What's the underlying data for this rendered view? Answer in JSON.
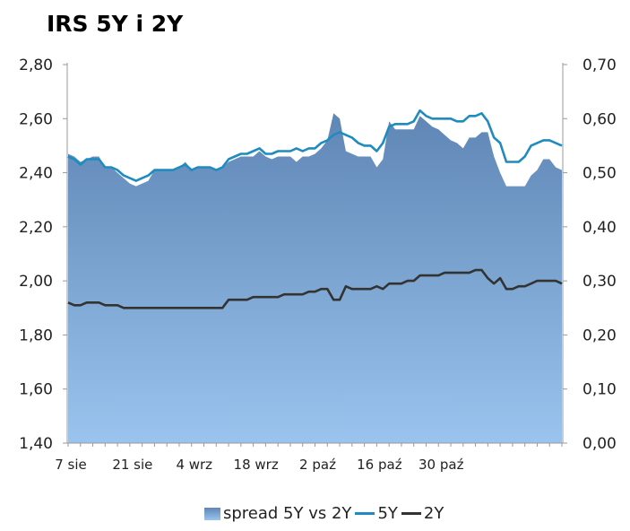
{
  "chart_data": {
    "type": "line",
    "title": "IRS 5Y i 2Y",
    "x_tick_labels": [
      "7 sie",
      "21 sie",
      "4 wrz",
      "18 wrz",
      "2 paź",
      "16 paź",
      "30 paź"
    ],
    "left_axis": {
      "min": 1.4,
      "max": 2.8,
      "step": 0.2,
      "tick_labels": [
        "1,40",
        "1,60",
        "1,80",
        "2,00",
        "2,20",
        "2,40",
        "2,60",
        "2,80"
      ]
    },
    "right_axis": {
      "min": 0.0,
      "max": 0.7,
      "step": 0.1,
      "tick_labels": [
        "0,00",
        "0,10",
        "0,20",
        "0,30",
        "0,40",
        "0,50",
        "0,60",
        "0,70"
      ]
    },
    "grid": false,
    "legend_position": "bottom",
    "colors": {
      "spread_top": "#5f86b5",
      "spread_bottom": "#9ac4ee",
      "five_y": "#1f8bbf",
      "two_y": "#333333"
    },
    "series": [
      {
        "name": "5Y",
        "axis": "left",
        "values": [
          2.46,
          2.45,
          2.43,
          2.45,
          2.45,
          2.45,
          2.42,
          2.42,
          2.41,
          2.39,
          2.38,
          2.37,
          2.38,
          2.39,
          2.41,
          2.41,
          2.41,
          2.41,
          2.42,
          2.43,
          2.41,
          2.42,
          2.42,
          2.42,
          2.41,
          2.42,
          2.45,
          2.46,
          2.47,
          2.47,
          2.48,
          2.49,
          2.47,
          2.47,
          2.48,
          2.48,
          2.48,
          2.49,
          2.48,
          2.49,
          2.49,
          2.51,
          2.52,
          2.54,
          2.55,
          2.54,
          2.53,
          2.51,
          2.5,
          2.5,
          2.48,
          2.51,
          2.57,
          2.58,
          2.58,
          2.58,
          2.59,
          2.63,
          2.61,
          2.6,
          2.6,
          2.6,
          2.6,
          2.59,
          2.59,
          2.61,
          2.61,
          2.62,
          2.59,
          2.53,
          2.51,
          2.44,
          2.44,
          2.44,
          2.46,
          2.5,
          2.51,
          2.52,
          2.52,
          2.51,
          2.5
        ]
      },
      {
        "name": "2Y",
        "axis": "left",
        "values": [
          1.92,
          1.91,
          1.91,
          1.92,
          1.92,
          1.92,
          1.91,
          1.91,
          1.91,
          1.9,
          1.9,
          1.9,
          1.9,
          1.9,
          1.9,
          1.9,
          1.9,
          1.9,
          1.9,
          1.9,
          1.9,
          1.9,
          1.9,
          1.9,
          1.9,
          1.9,
          1.93,
          1.93,
          1.93,
          1.93,
          1.94,
          1.94,
          1.94,
          1.94,
          1.94,
          1.95,
          1.95,
          1.95,
          1.95,
          1.96,
          1.96,
          1.97,
          1.97,
          1.93,
          1.93,
          1.98,
          1.97,
          1.97,
          1.97,
          1.97,
          1.98,
          1.97,
          1.99,
          1.99,
          1.99,
          2.0,
          2.0,
          2.02,
          2.02,
          2.02,
          2.02,
          2.03,
          2.03,
          2.03,
          2.03,
          2.03,
          2.04,
          2.04,
          2.01,
          1.99,
          2.01,
          1.97,
          1.97,
          1.98,
          1.98,
          1.99,
          2.0,
          2.0,
          2.0,
          2.0,
          1.99
        ]
      },
      {
        "name": "spread 5Y vs 2Y",
        "axis": "right",
        "type": "area",
        "values": [
          0.535,
          0.53,
          0.52,
          0.525,
          0.53,
          0.53,
          0.51,
          0.51,
          0.5,
          0.49,
          0.48,
          0.475,
          0.48,
          0.485,
          0.505,
          0.505,
          0.505,
          0.505,
          0.51,
          0.52,
          0.505,
          0.51,
          0.51,
          0.51,
          0.505,
          0.51,
          0.52,
          0.525,
          0.53,
          0.53,
          0.53,
          0.54,
          0.53,
          0.525,
          0.53,
          0.53,
          0.53,
          0.52,
          0.53,
          0.53,
          0.535,
          0.545,
          0.56,
          0.61,
          0.6,
          0.54,
          0.535,
          0.53,
          0.53,
          0.53,
          0.51,
          0.525,
          0.595,
          0.58,
          0.58,
          0.58,
          0.58,
          0.605,
          0.595,
          0.585,
          0.58,
          0.57,
          0.56,
          0.555,
          0.545,
          0.565,
          0.565,
          0.575,
          0.575,
          0.53,
          0.5,
          0.475,
          0.475,
          0.475,
          0.475,
          0.495,
          0.505,
          0.525,
          0.525,
          0.51,
          0.505
        ]
      }
    ]
  },
  "legend": {
    "spread_label": "spread 5Y vs 2Y",
    "five_y_label": "5Y",
    "two_y_label": "2Y"
  }
}
